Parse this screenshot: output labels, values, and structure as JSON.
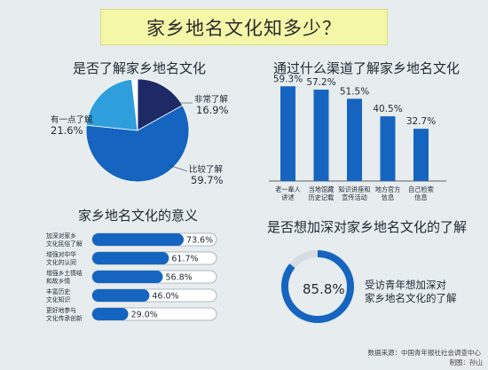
{
  "header": {
    "title": "家乡地名文化知多少？"
  },
  "pie_section": {
    "title": "是否了解家乡地名文化"
  },
  "bar_section": {
    "title": "通过什么渠道了解家乡地名文化"
  },
  "meaning_section": {
    "title": "家乡地名文化的意义"
  },
  "desire_section": {
    "title": "是否想加深对家乡地名文化的了解",
    "value": "85.8%",
    "caption_line1": "受访青年想加深对",
    "caption_line2": "家乡地名文化的了解"
  },
  "footer": {
    "source": "数据来源：中国青年报社社会调查中心",
    "credit": "制图：孙山"
  },
  "colors": {
    "dark_navy": "#1e2a66",
    "blue": "#1565c0",
    "light_blue": "#2e9fdc",
    "white": "#ffffff",
    "background": "#e7ecef",
    "title_box": "#f4f7a8",
    "track": "#ffffff",
    "track_border": "#9aa7b0"
  },
  "chart_data": [
    {
      "type": "pie",
      "title": "是否了解家乡地名文化",
      "slices": [
        {
          "label": "非常了解",
          "value": 16.9,
          "display": "16.9%",
          "color": "#1e2a66"
        },
        {
          "label": "比较了解",
          "value": 59.7,
          "display": "59.7%",
          "color": "#1565c0"
        },
        {
          "label": "有一点了解",
          "value": 21.6,
          "display": "21.6%",
          "color": "#2e9fdc"
        },
        {
          "label": "",
          "value": 1.8,
          "display": "",
          "color": "#ffffff"
        }
      ]
    },
    {
      "type": "bar",
      "title": "通过什么渠道了解家乡地名文化",
      "categories": [
        [
          "老一辈人",
          "讲述"
        ],
        [
          "当地馆藏",
          "历史记载"
        ],
        [
          "知识讲座和",
          "宣传活动"
        ],
        [
          "地方官方",
          "信息"
        ],
        [
          "自己检索",
          "信息"
        ]
      ],
      "values": [
        59.3,
        57.2,
        51.5,
        40.5,
        32.7
      ],
      "labels": [
        "59.3%",
        "57.2%",
        "51.5%",
        "40.5%",
        "32.7%"
      ],
      "ylim": [
        0,
        60
      ],
      "color": "#1565c0"
    },
    {
      "type": "bar",
      "orientation": "horizontal",
      "title": "家乡地名文化的意义",
      "categories": [
        [
          "加深对家乡",
          "文化民俗了解"
        ],
        [
          "增强对中华",
          "文化的认同"
        ],
        [
          "增强乡土情结",
          "和故乡情"
        ],
        [
          "丰富历史",
          "文化知识"
        ],
        [
          "更好地参与",
          "文化传承创新"
        ]
      ],
      "values": [
        73.6,
        61.7,
        56.8,
        46.0,
        29.0
      ],
      "labels": [
        "73.6%",
        "61.7%",
        "56.8%",
        "46.0%",
        "29.0%"
      ],
      "xlim": [
        0,
        100
      ],
      "color": "#1565c0"
    },
    {
      "type": "pie",
      "title": "是否想加深对家乡地名文化的了解",
      "slices": [
        {
          "label": "受访青年想加深对家乡地名文化的了解",
          "value": 85.8,
          "display": "85.8%",
          "color": "#1565c0"
        },
        {
          "label": "",
          "value": 14.2,
          "display": "",
          "color": "#e7ecef"
        }
      ]
    }
  ]
}
